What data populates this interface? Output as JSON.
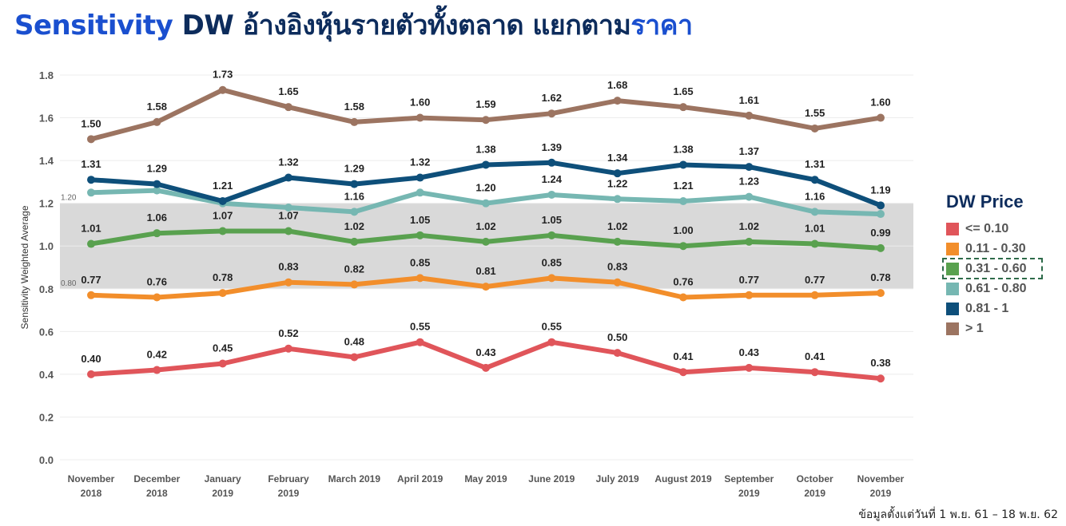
{
  "title": {
    "part1": "Sensitivity",
    "part2": " DW อ้างอิงหุ้นรายตัวทั้งตลาด แยกตาม",
    "part3": "ราคา"
  },
  "footnote": "ข้อมูลตั้งแต่วันที่ 1 พ.ย. 61 – 18 พ.ย. 62",
  "legend": {
    "title": "DW Price",
    "items": [
      {
        "label": "<= 0.10",
        "color": "#e0555a"
      },
      {
        "label": "0.11 - 0.30",
        "color": "#f28e2b"
      },
      {
        "label": "0.31 - 0.60",
        "color": "#59a14f",
        "selected": true
      },
      {
        "label": "0.61 - 0.80",
        "color": "#76b7b2"
      },
      {
        "label": "0.81 - 1",
        "color": "#0e4f7a"
      },
      {
        "label": "> 1",
        "color": "#9c7461"
      }
    ]
  },
  "chart_data": {
    "type": "line",
    "ylabel": "Sensitivity Weighted Average",
    "ylim": [
      0,
      1.8
    ],
    "yticks": [
      "0.0",
      "0.2",
      "0.4",
      "0.6",
      "0.8",
      "1.0",
      "1.2",
      "1.4",
      "1.6",
      "1.8"
    ],
    "band": {
      "from": 0.8,
      "to": 1.2,
      "labels": [
        "0.80",
        "1.20"
      ],
      "color": "#d9d9d9"
    },
    "categories": [
      [
        "November",
        "2018"
      ],
      [
        "December",
        "2018"
      ],
      [
        "January",
        "2019"
      ],
      [
        "February",
        "2019"
      ],
      [
        "March 2019"
      ],
      [
        "April 2019"
      ],
      [
        "May 2019"
      ],
      [
        "June 2019"
      ],
      [
        "July 2019"
      ],
      [
        "August 2019"
      ],
      [
        "September",
        "2019"
      ],
      [
        "October",
        "2019"
      ],
      [
        "November",
        "2019"
      ]
    ],
    "series": [
      {
        "name": "<= 0.10",
        "color": "#e0555a",
        "labels": true,
        "values": [
          0.4,
          0.42,
          0.45,
          0.52,
          0.48,
          0.55,
          0.43,
          0.55,
          0.5,
          0.41,
          0.43,
          0.41,
          0.38
        ]
      },
      {
        "name": "0.11 - 0.30",
        "color": "#f28e2b",
        "labels": true,
        "values": [
          0.77,
          0.76,
          0.78,
          0.83,
          0.82,
          0.85,
          0.81,
          0.85,
          0.83,
          0.76,
          0.77,
          0.77,
          0.78
        ]
      },
      {
        "name": "0.31 - 0.60",
        "color": "#59a14f",
        "labels": true,
        "values": [
          1.01,
          1.06,
          1.07,
          1.07,
          1.02,
          1.05,
          1.02,
          1.05,
          1.02,
          1.0,
          1.02,
          1.01,
          0.99
        ]
      },
      {
        "name": "0.61 - 0.80",
        "color": "#76b7b2",
        "labels": false,
        "values": [
          1.25,
          1.26,
          1.2,
          1.18,
          1.16,
          1.25,
          1.2,
          1.24,
          1.22,
          1.21,
          1.23,
          1.16,
          1.15
        ],
        "value_labels": [
          "",
          "",
          "",
          "",
          "1.16",
          "",
          "1.20",
          "1.24",
          "1.22",
          "1.21",
          "1.23",
          "1.16",
          ""
        ]
      },
      {
        "name": "0.81 - 1",
        "color": "#0e4f7a",
        "labels": true,
        "values": [
          1.31,
          1.29,
          1.21,
          1.32,
          1.29,
          1.32,
          1.38,
          1.39,
          1.34,
          1.38,
          1.37,
          1.31,
          1.19
        ]
      },
      {
        "name": "> 1",
        "color": "#9c7461",
        "labels": true,
        "values": [
          1.5,
          1.58,
          1.73,
          1.65,
          1.58,
          1.6,
          1.59,
          1.62,
          1.68,
          1.65,
          1.61,
          1.55,
          1.6
        ]
      }
    ]
  }
}
